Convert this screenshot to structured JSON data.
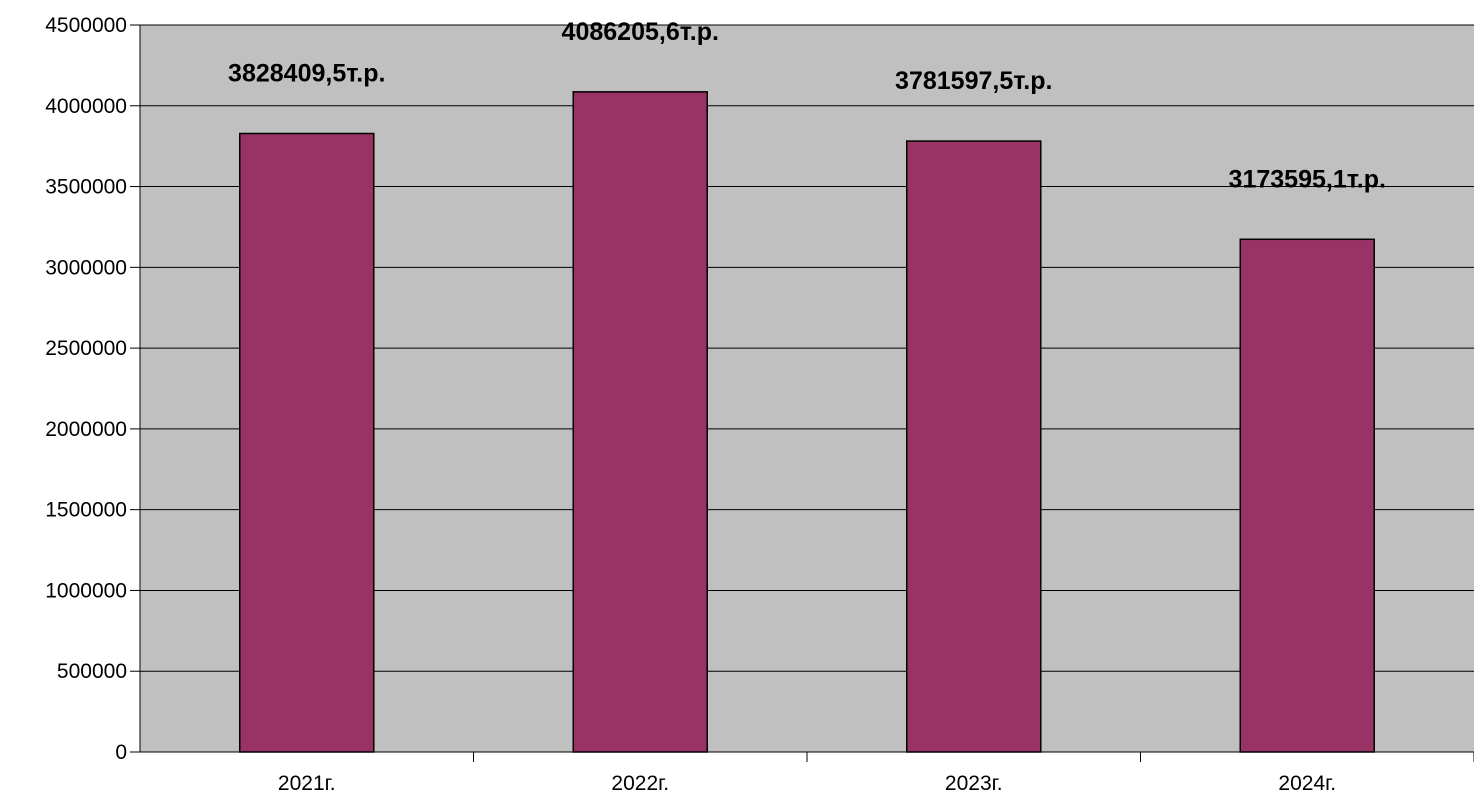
{
  "chart_data": {
    "type": "bar",
    "title": "",
    "xlabel": "",
    "ylabel": "",
    "categories": [
      "2021г.",
      "2022г.",
      "2023г.",
      "2024г."
    ],
    "values": [
      3828409.5,
      4086205.6,
      3781597.5,
      3173595.1
    ],
    "data_labels": [
      "3828409,5т.р.",
      "4086205,6т.р.",
      "3781597,5т.р.",
      "3173595,1т.р."
    ],
    "ylim": [
      0,
      4500000
    ],
    "y_ticks": [
      0,
      500000,
      1000000,
      1500000,
      2000000,
      2500000,
      3000000,
      3500000,
      4000000,
      4500000
    ],
    "y_tick_labels": [
      "0",
      "500000",
      "1000000",
      "1500000",
      "2000000",
      "2500000",
      "3000000",
      "3500000",
      "4000000",
      "4500000"
    ],
    "grid": true,
    "legend": "none",
    "colors": {
      "bar": "#993366",
      "plot_background": "#c0c0c0",
      "gridline": "#000000"
    }
  }
}
